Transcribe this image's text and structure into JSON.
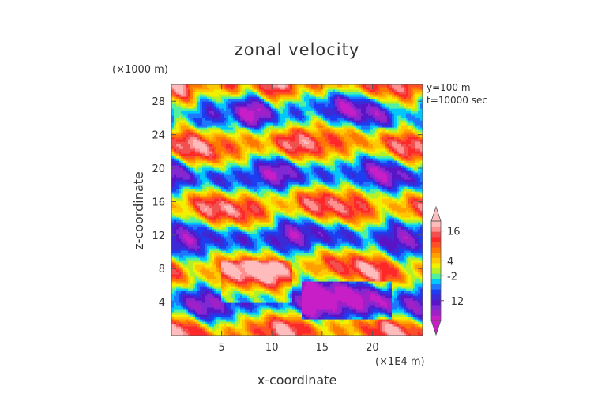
{
  "chart_data": {
    "type": "heatmap",
    "title": "zonal velocity",
    "xlabel": "x-coordinate",
    "ylabel": "z-coordinate",
    "x_unit": "(×1E4 m)",
    "y_unit": "(×1000 m)",
    "xlim": [
      0,
      25
    ],
    "ylim": [
      0,
      30
    ],
    "x_ticks": [
      5,
      10,
      15,
      20
    ],
    "y_ticks": [
      4,
      8,
      12,
      16,
      20,
      24,
      28
    ],
    "annotations": [
      "y=100 m",
      "t=10000 sec"
    ],
    "colorbar": {
      "tick_labels": [
        "16",
        "4",
        "-2",
        "-12"
      ],
      "tick_values": [
        16,
        4,
        -2,
        -12
      ],
      "range": [
        -20,
        20
      ],
      "colors": [
        "#c81ec8",
        "#a020c8",
        "#8028d2",
        "#5a14c8",
        "#3c2ad6",
        "#1e3cf0",
        "#1e78ff",
        "#00c8ff",
        "#50f0a0",
        "#b4f028",
        "#f0f000",
        "#ffc800",
        "#ffa000",
        "#ff7800",
        "#ff5028",
        "#ff2828",
        "#f05050",
        "#ff9090",
        "#ffbcbc"
      ]
    },
    "grid": false
  }
}
